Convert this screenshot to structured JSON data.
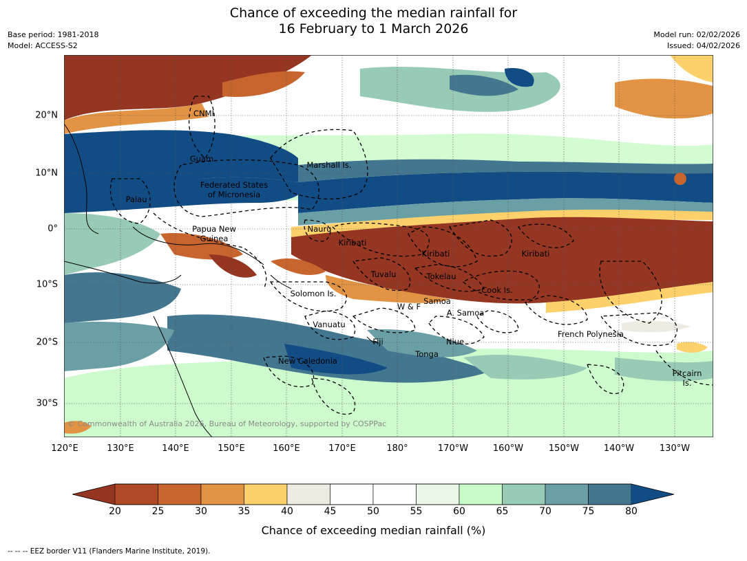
{
  "title_line1": "Chance of exceeding the median rainfall for",
  "title_line2": "16 February to 1 March 2026",
  "meta_left": {
    "base_period": "Base period: 1981-2018",
    "model": "Model: ACCESS-S2"
  },
  "meta_right": {
    "model_run": "Model run: 02/02/2026",
    "issued": "Issued: 04/02/2026"
  },
  "map": {
    "copyright": "© Commonwealth of Australia 2026, Bureau of Meteorology, supported by COSPPac",
    "lon_ticks": [
      "120°E",
      "130°E",
      "140°E",
      "150°E",
      "160°E",
      "170°E",
      "180°",
      "170°W",
      "160°W",
      "150°W",
      "140°W",
      "130°W"
    ],
    "lat_ticks": [
      "20°N",
      "10°N",
      "0°",
      "10°S",
      "20°S",
      "30°S"
    ],
    "labels": [
      {
        "text": "CNMI"
      },
      {
        "text": "Guam"
      },
      {
        "text": "Marshall Is."
      },
      {
        "text": "Federated States\nof Micronesia"
      },
      {
        "text": "Palau"
      },
      {
        "text": "Papua New\nGuinea"
      },
      {
        "text": "Nauru"
      },
      {
        "text": "Kiribati"
      },
      {
        "text": "Kiribati"
      },
      {
        "text": "Kiribati"
      },
      {
        "text": "Tuvalu"
      },
      {
        "text": "Tokelau"
      },
      {
        "text": "Cook Is."
      },
      {
        "text": "Solomon Is."
      },
      {
        "text": "Samoa"
      },
      {
        "text": "W & F"
      },
      {
        "text": "A. Samoa"
      },
      {
        "text": "Vanuatu"
      },
      {
        "text": "Fiji"
      },
      {
        "text": "Niue"
      },
      {
        "text": "French Polynesia"
      },
      {
        "text": "Tonga"
      },
      {
        "text": "New Caledonia"
      },
      {
        "text": "Pitcairn\nIs."
      }
    ]
  },
  "colorbar": {
    "ticks": [
      "20",
      "25",
      "30",
      "35",
      "40",
      "45",
      "50",
      "55",
      "60",
      "65",
      "70",
      "75",
      "80"
    ],
    "colors": [
      "#b04a26",
      "#c8652f",
      "#e29343",
      "#fcd16b",
      "#eeebe3",
      "#ffffff",
      "#ffffff",
      "#e9f7e8",
      "#c8fbc8",
      "#98cbb6",
      "#6a9fa6",
      "#43768f"
    ],
    "under_color": "#943622",
    "over_color": "#124c84",
    "label": "Chance of exceeding median rainfall (%)"
  },
  "footnote": "--  --  -- EEZ border V11 (Flanders Marine Institute, 2019)."
}
